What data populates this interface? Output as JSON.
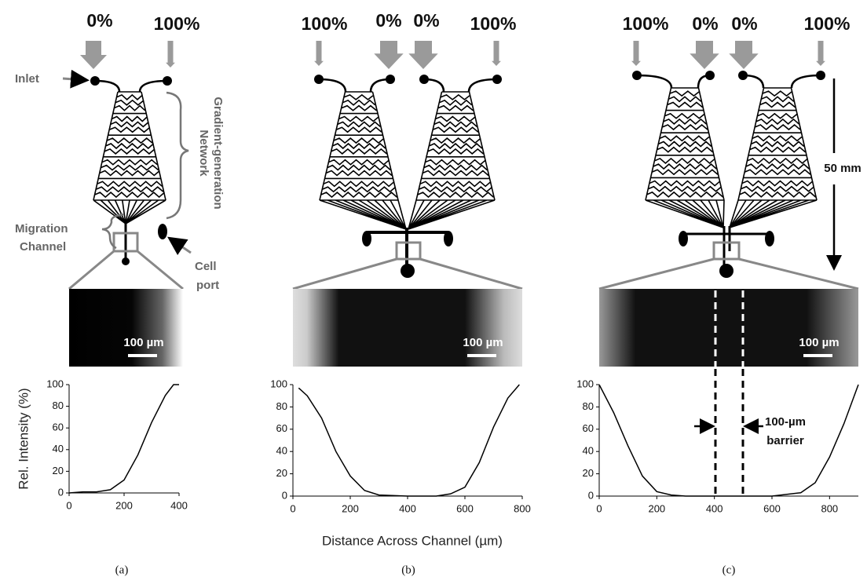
{
  "panels": [
    {
      "caption": "(a)",
      "inlets": [
        "0%",
        "100%"
      ],
      "scale_bar": "100 µm",
      "inlet_label": "Inlet",
      "network_label": [
        "Gradient-generation",
        "Network"
      ],
      "channel_label": [
        "Migration",
        "Channel"
      ],
      "cell_port_label": [
        "Cell",
        "port"
      ]
    },
    {
      "caption": "(b)",
      "inlets": [
        "100%",
        "0%",
        "0%",
        "100%"
      ],
      "scale_bar": "100 µm"
    },
    {
      "caption": "(c)",
      "inlets": [
        "100%",
        "0%",
        "0%",
        "100%"
      ],
      "scale_bar": "100 µm",
      "size_label": "50 mm",
      "barrier_label": [
        "100-µm",
        "barrier"
      ]
    }
  ],
  "x_axis_label": "Distance Across Channel (µm)",
  "chart_data": [
    {
      "type": "line",
      "y_label": "Rel. Intensity (%)",
      "x": [
        0,
        50,
        100,
        150,
        200,
        250,
        300,
        350,
        380,
        400
      ],
      "series": [
        {
          "color": "#000000",
          "values": [
            0,
            1,
            1,
            3,
            12,
            35,
            65,
            90,
            100,
            100
          ]
        }
      ],
      "xlim": [
        0,
        400
      ],
      "xticks": [
        0,
        200,
        400
      ],
      "ylim": [
        0,
        100
      ],
      "yticks": [
        0,
        20,
        40,
        60,
        80,
        100
      ]
    },
    {
      "type": "line",
      "x": [
        20,
        50,
        100,
        150,
        200,
        250,
        300,
        400,
        500,
        550,
        600,
        650,
        700,
        750,
        790
      ],
      "series": [
        {
          "color": "#000000",
          "values": [
            97,
            90,
            70,
            40,
            18,
            5,
            1,
            0,
            0,
            2,
            8,
            30,
            62,
            88,
            100
          ]
        }
      ],
      "xlim": [
        0,
        800
      ],
      "xticks": [
        0,
        200,
        400,
        600,
        800
      ],
      "ylim": [
        0,
        100
      ],
      "yticks": [
        0,
        20,
        40,
        60,
        80,
        100
      ]
    },
    {
      "type": "line",
      "x": [
        0,
        50,
        100,
        150,
        200,
        250,
        300,
        400,
        500,
        600,
        700,
        750,
        800,
        850,
        900
      ],
      "series": [
        {
          "color": "#000000",
          "values": [
            100,
            75,
            45,
            18,
            4,
            1,
            0,
            0,
            0,
            0,
            3,
            12,
            35,
            65,
            100
          ]
        }
      ],
      "xlim": [
        0,
        900
      ],
      "xticks": [
        0,
        200,
        400,
        600,
        800
      ],
      "ylim": [
        0,
        100
      ],
      "yticks": [
        0,
        20,
        40,
        60,
        80,
        100
      ]
    }
  ]
}
